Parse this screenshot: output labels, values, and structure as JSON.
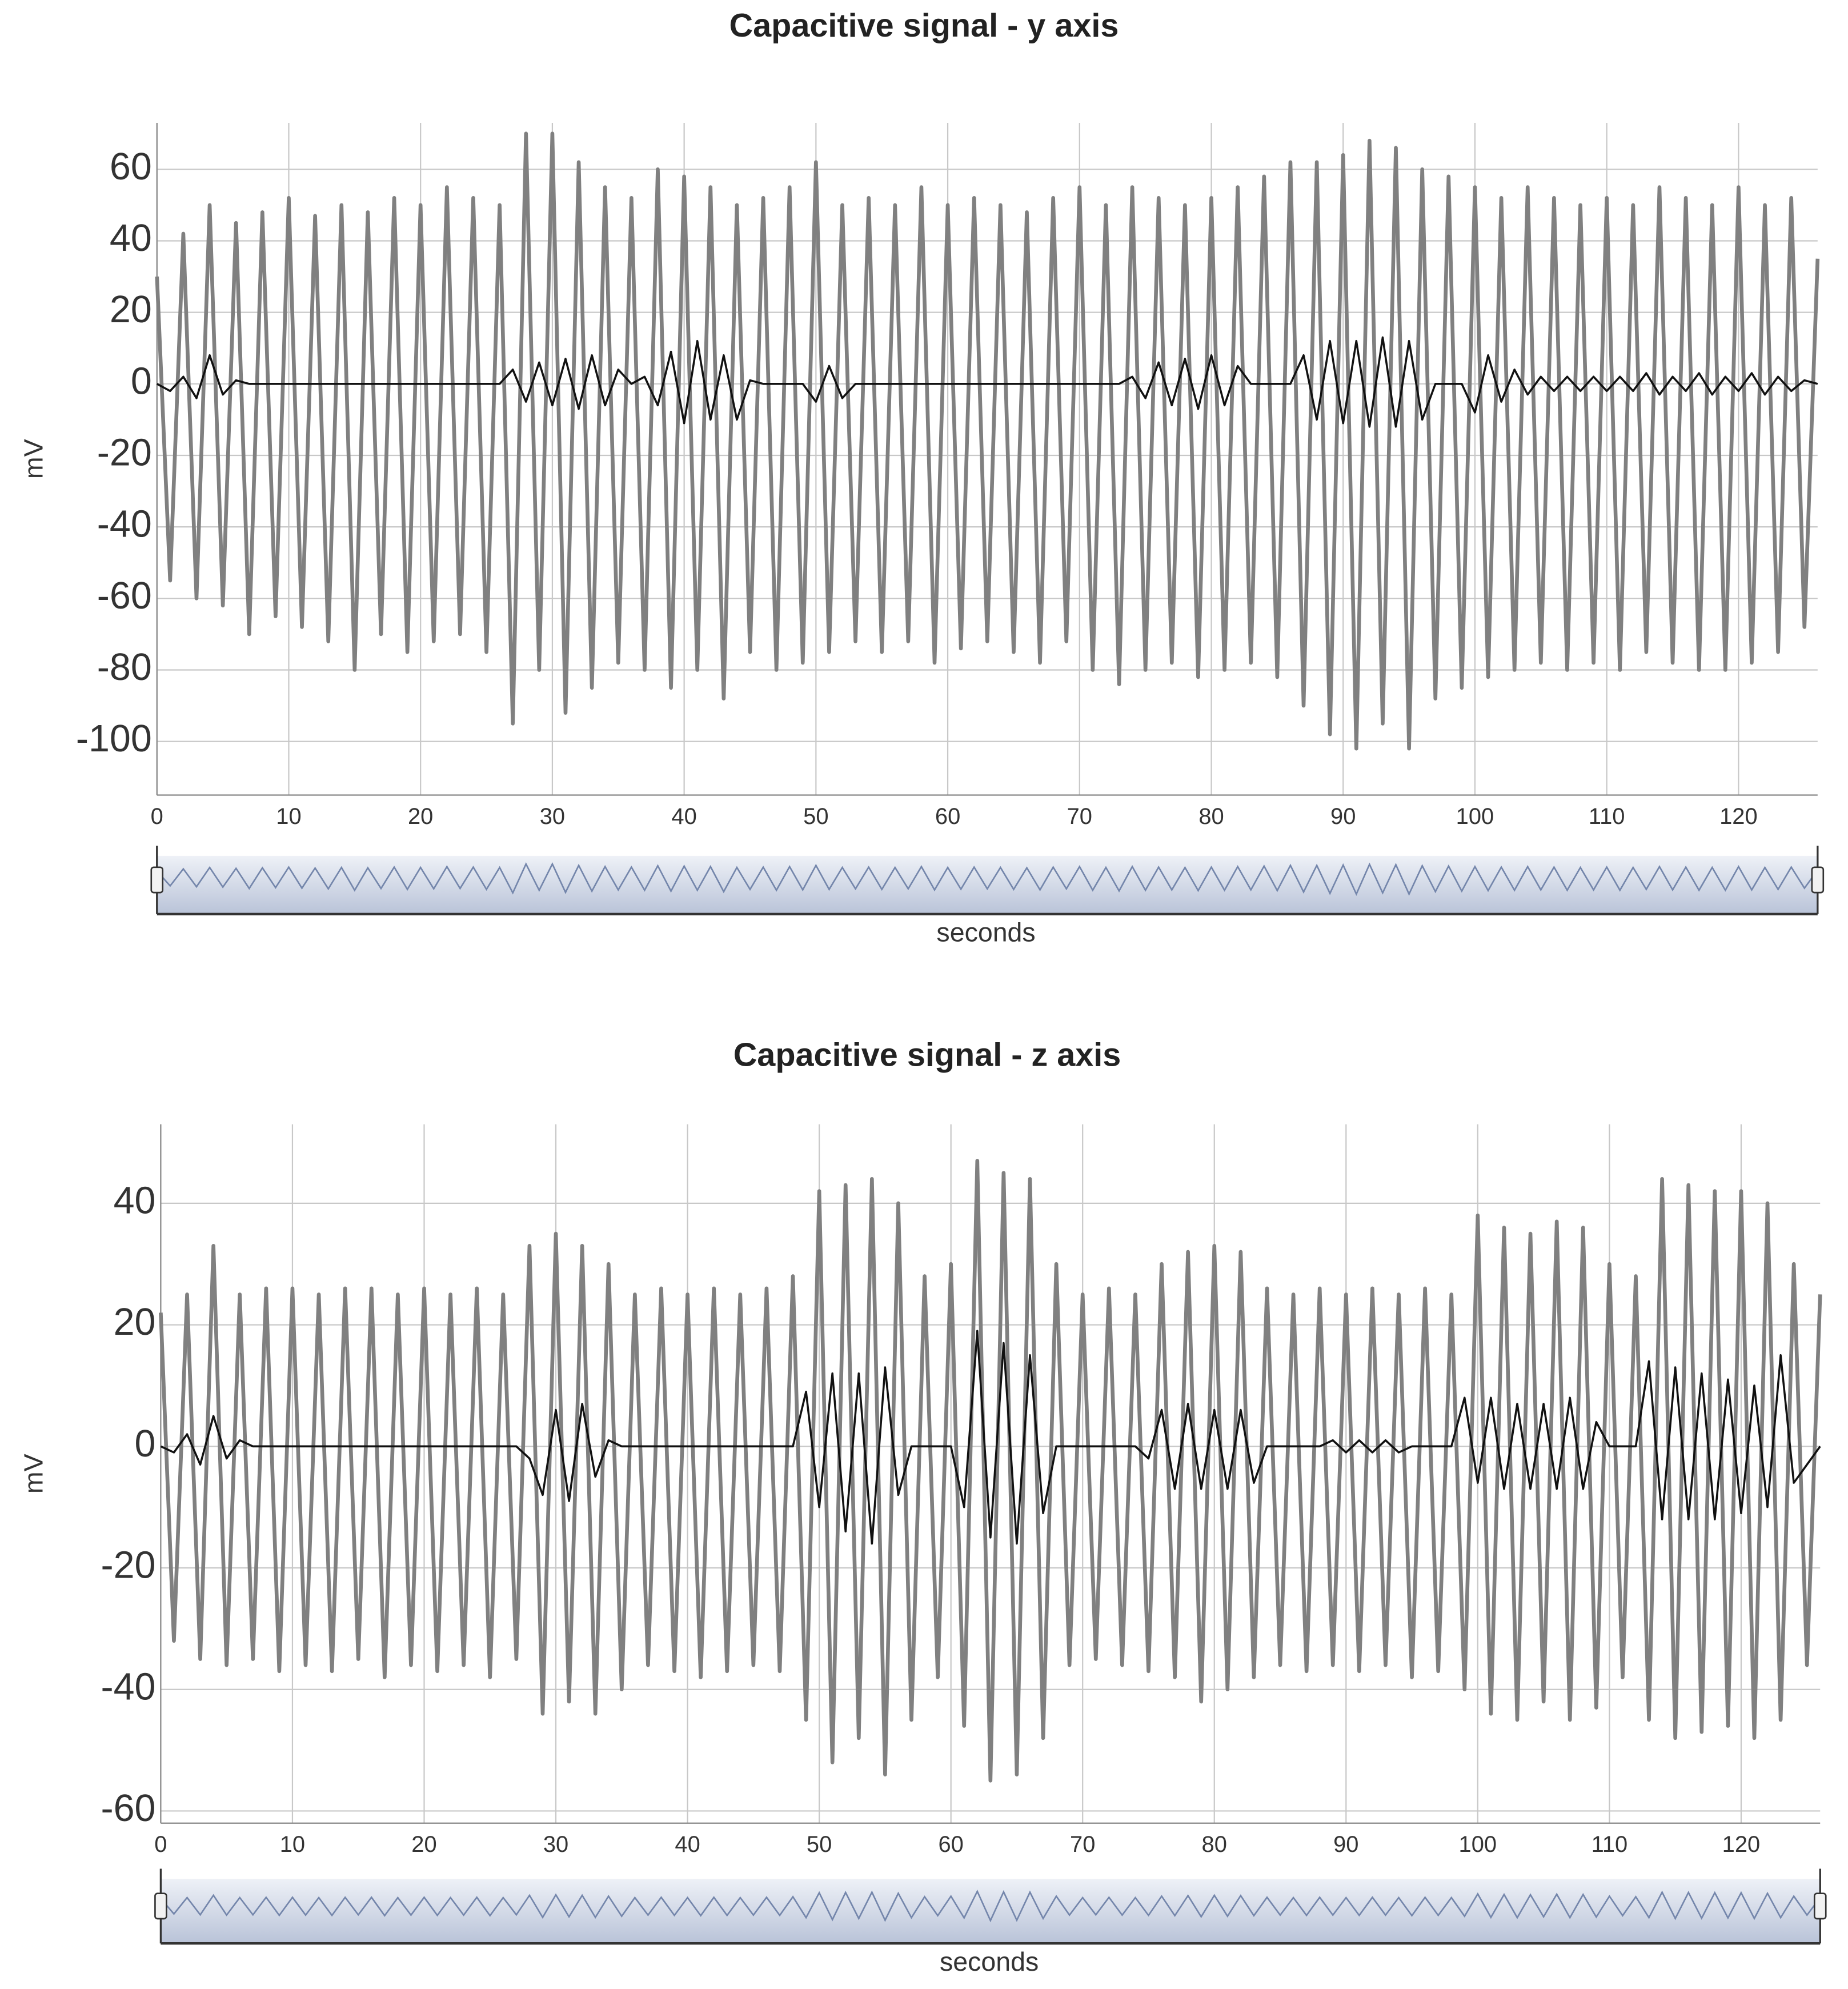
{
  "chart_data": [
    {
      "type": "line",
      "title": "Capacitive signal - y axis",
      "ylabel": "mV",
      "xlabel": "seconds",
      "grid": true,
      "xlim": [
        0,
        126
      ],
      "ylim": [
        -115,
        73
      ],
      "xticks": [
        0,
        10,
        20,
        30,
        40,
        50,
        60,
        70,
        80,
        90,
        100,
        110,
        120
      ],
      "yticks": [
        -100,
        -80,
        -60,
        -40,
        -20,
        0,
        20,
        40,
        60
      ],
      "x": [
        0,
        1,
        2,
        3,
        4,
        5,
        6,
        7,
        8,
        9,
        10,
        11,
        12,
        13,
        14,
        15,
        16,
        17,
        18,
        19,
        20,
        21,
        22,
        23,
        24,
        25,
        26,
        27,
        28,
        29,
        30,
        31,
        32,
        33,
        34,
        35,
        36,
        37,
        38,
        39,
        40,
        41,
        42,
        43,
        44,
        45,
        46,
        47,
        48,
        49,
        50,
        51,
        52,
        53,
        54,
        55,
        56,
        57,
        58,
        59,
        60,
        61,
        62,
        63,
        64,
        65,
        66,
        67,
        68,
        69,
        70,
        71,
        72,
        73,
        74,
        75,
        76,
        77,
        78,
        79,
        80,
        81,
        82,
        83,
        84,
        85,
        86,
        87,
        88,
        89,
        90,
        91,
        92,
        93,
        94,
        95,
        96,
        97,
        98,
        99,
        100,
        101,
        102,
        103,
        104,
        105,
        106,
        107,
        108,
        109,
        110,
        111,
        112,
        113,
        114,
        115,
        116,
        117,
        118,
        119,
        120,
        121,
        122,
        123,
        124,
        125,
        126
      ],
      "series": [
        {
          "color": "#808080",
          "values": [
            30,
            -55,
            42,
            -60,
            50,
            -62,
            45,
            -70,
            48,
            -65,
            52,
            -68,
            47,
            -72,
            50,
            -80,
            48,
            -70,
            52,
            -75,
            50,
            -72,
            55,
            -70,
            52,
            -75,
            50,
            -95,
            70,
            -80,
            70,
            -92,
            62,
            -85,
            55,
            -78,
            52,
            -80,
            60,
            -85,
            58,
            -80,
            55,
            -88,
            50,
            -75,
            52,
            -80,
            55,
            -78,
            62,
            -75,
            50,
            -72,
            52,
            -75,
            50,
            -72,
            55,
            -78,
            50,
            -74,
            52,
            -72,
            50,
            -75,
            48,
            -78,
            52,
            -72,
            55,
            -80,
            50,
            -84,
            55,
            -80,
            52,
            -78,
            50,
            -82,
            52,
            -80,
            55,
            -78,
            58,
            -82,
            62,
            -90,
            62,
            -98,
            64,
            -102,
            68,
            -95,
            66,
            -102,
            60,
            -88,
            58,
            -85,
            55,
            -82,
            52,
            -80,
            55,
            -78,
            52,
            -80,
            50,
            -78,
            52,
            -80,
            50,
            -75,
            55,
            -78,
            52,
            -80,
            50,
            -80,
            55,
            -78,
            50,
            -75,
            52,
            -68,
            35
          ]
        },
        {
          "color": "#111111",
          "values": [
            0,
            -2,
            2,
            -4,
            8,
            -3,
            1,
            0,
            0,
            0,
            0,
            0,
            0,
            0,
            0,
            0,
            0,
            0,
            0,
            0,
            0,
            0,
            0,
            0,
            0,
            0,
            0,
            4,
            -5,
            6,
            -6,
            7,
            -7,
            8,
            -6,
            4,
            0,
            2,
            -6,
            9,
            -11,
            12,
            -10,
            8,
            -10,
            1,
            0,
            0,
            0,
            0,
            -5,
            5,
            -4,
            0,
            0,
            0,
            0,
            0,
            0,
            0,
            0,
            0,
            0,
            0,
            0,
            0,
            0,
            0,
            0,
            0,
            0,
            0,
            0,
            0,
            2,
            -4,
            6,
            -6,
            7,
            -7,
            8,
            -6,
            5,
            0,
            0,
            0,
            0,
            8,
            -10,
            12,
            -11,
            12,
            -12,
            13,
            -12,
            12,
            -10,
            0,
            0,
            0,
            -8,
            8,
            -5,
            4,
            -3,
            2,
            -2,
            2,
            -2,
            2,
            -2,
            2,
            -2,
            3,
            -3,
            2,
            -2,
            3,
            -3,
            2,
            -2,
            3,
            -3,
            2,
            -2,
            1,
            0
          ]
        }
      ]
    },
    {
      "type": "line",
      "title": "Capacitive signal - z axis",
      "ylabel": "mV",
      "xlabel": "seconds",
      "grid": true,
      "xlim": [
        0,
        126
      ],
      "ylim": [
        -62,
        53
      ],
      "xticks": [
        0,
        10,
        20,
        30,
        40,
        50,
        60,
        70,
        80,
        90,
        100,
        110,
        120
      ],
      "yticks": [
        -60,
        -40,
        -20,
        0,
        20,
        40
      ],
      "x": [
        0,
        1,
        2,
        3,
        4,
        5,
        6,
        7,
        8,
        9,
        10,
        11,
        12,
        13,
        14,
        15,
        16,
        17,
        18,
        19,
        20,
        21,
        22,
        23,
        24,
        25,
        26,
        27,
        28,
        29,
        30,
        31,
        32,
        33,
        34,
        35,
        36,
        37,
        38,
        39,
        40,
        41,
        42,
        43,
        44,
        45,
        46,
        47,
        48,
        49,
        50,
        51,
        52,
        53,
        54,
        55,
        56,
        57,
        58,
        59,
        60,
        61,
        62,
        63,
        64,
        65,
        66,
        67,
        68,
        69,
        70,
        71,
        72,
        73,
        74,
        75,
        76,
        77,
        78,
        79,
        80,
        81,
        82,
        83,
        84,
        85,
        86,
        87,
        88,
        89,
        90,
        91,
        92,
        93,
        94,
        95,
        96,
        97,
        98,
        99,
        100,
        101,
        102,
        103,
        104,
        105,
        106,
        107,
        108,
        109,
        110,
        111,
        112,
        113,
        114,
        115,
        116,
        117,
        118,
        119,
        120,
        121,
        122,
        123,
        124,
        125,
        126
      ],
      "series": [
        {
          "color": "#808080",
          "values": [
            22,
            -32,
            25,
            -35,
            33,
            -36,
            25,
            -35,
            26,
            -37,
            26,
            -36,
            25,
            -37,
            26,
            -35,
            26,
            -38,
            25,
            -36,
            26,
            -37,
            25,
            -36,
            26,
            -38,
            25,
            -35,
            33,
            -44,
            35,
            -42,
            33,
            -44,
            30,
            -40,
            25,
            -36,
            26,
            -37,
            25,
            -38,
            26,
            -37,
            25,
            -36,
            26,
            -37,
            28,
            -45,
            42,
            -52,
            43,
            -48,
            44,
            -54,
            40,
            -45,
            28,
            -38,
            30,
            -46,
            47,
            -55,
            45,
            -54,
            44,
            -48,
            30,
            -36,
            25,
            -35,
            26,
            -36,
            25,
            -37,
            30,
            -38,
            32,
            -42,
            33,
            -40,
            32,
            -38,
            26,
            -36,
            25,
            -37,
            26,
            -36,
            25,
            -37,
            26,
            -36,
            25,
            -38,
            26,
            -37,
            25,
            -40,
            38,
            -44,
            36,
            -45,
            35,
            -42,
            37,
            -45,
            36,
            -43,
            30,
            -38,
            28,
            -45,
            44,
            -48,
            43,
            -47,
            42,
            -46,
            42,
            -48,
            40,
            -45,
            30,
            -36,
            25
          ]
        },
        {
          "color": "#111111",
          "values": [
            0,
            -1,
            2,
            -3,
            5,
            -2,
            1,
            0,
            0,
            0,
            0,
            0,
            0,
            0,
            0,
            0,
            0,
            0,
            0,
            0,
            0,
            0,
            0,
            0,
            0,
            0,
            0,
            0,
            -2,
            -8,
            6,
            -9,
            7,
            -5,
            1,
            0,
            0,
            0,
            0,
            0,
            0,
            0,
            0,
            0,
            0,
            0,
            0,
            0,
            0,
            9,
            -10,
            12,
            -14,
            12,
            -16,
            13,
            -8,
            0,
            0,
            0,
            0,
            -10,
            19,
            -15,
            17,
            -16,
            15,
            -11,
            0,
            0,
            0,
            0,
            0,
            0,
            0,
            -2,
            6,
            -7,
            7,
            -7,
            6,
            -7,
            6,
            -6,
            0,
            0,
            0,
            0,
            0,
            1,
            -1,
            1,
            -1,
            1,
            -1,
            0,
            0,
            0,
            0,
            8,
            -6,
            8,
            -7,
            7,
            -7,
            7,
            -7,
            8,
            -7,
            4,
            0,
            0,
            0,
            14,
            -12,
            13,
            -12,
            12,
            -12,
            11,
            -11,
            10,
            -10,
            15,
            -6,
            -3,
            0
          ]
        }
      ]
    }
  ]
}
